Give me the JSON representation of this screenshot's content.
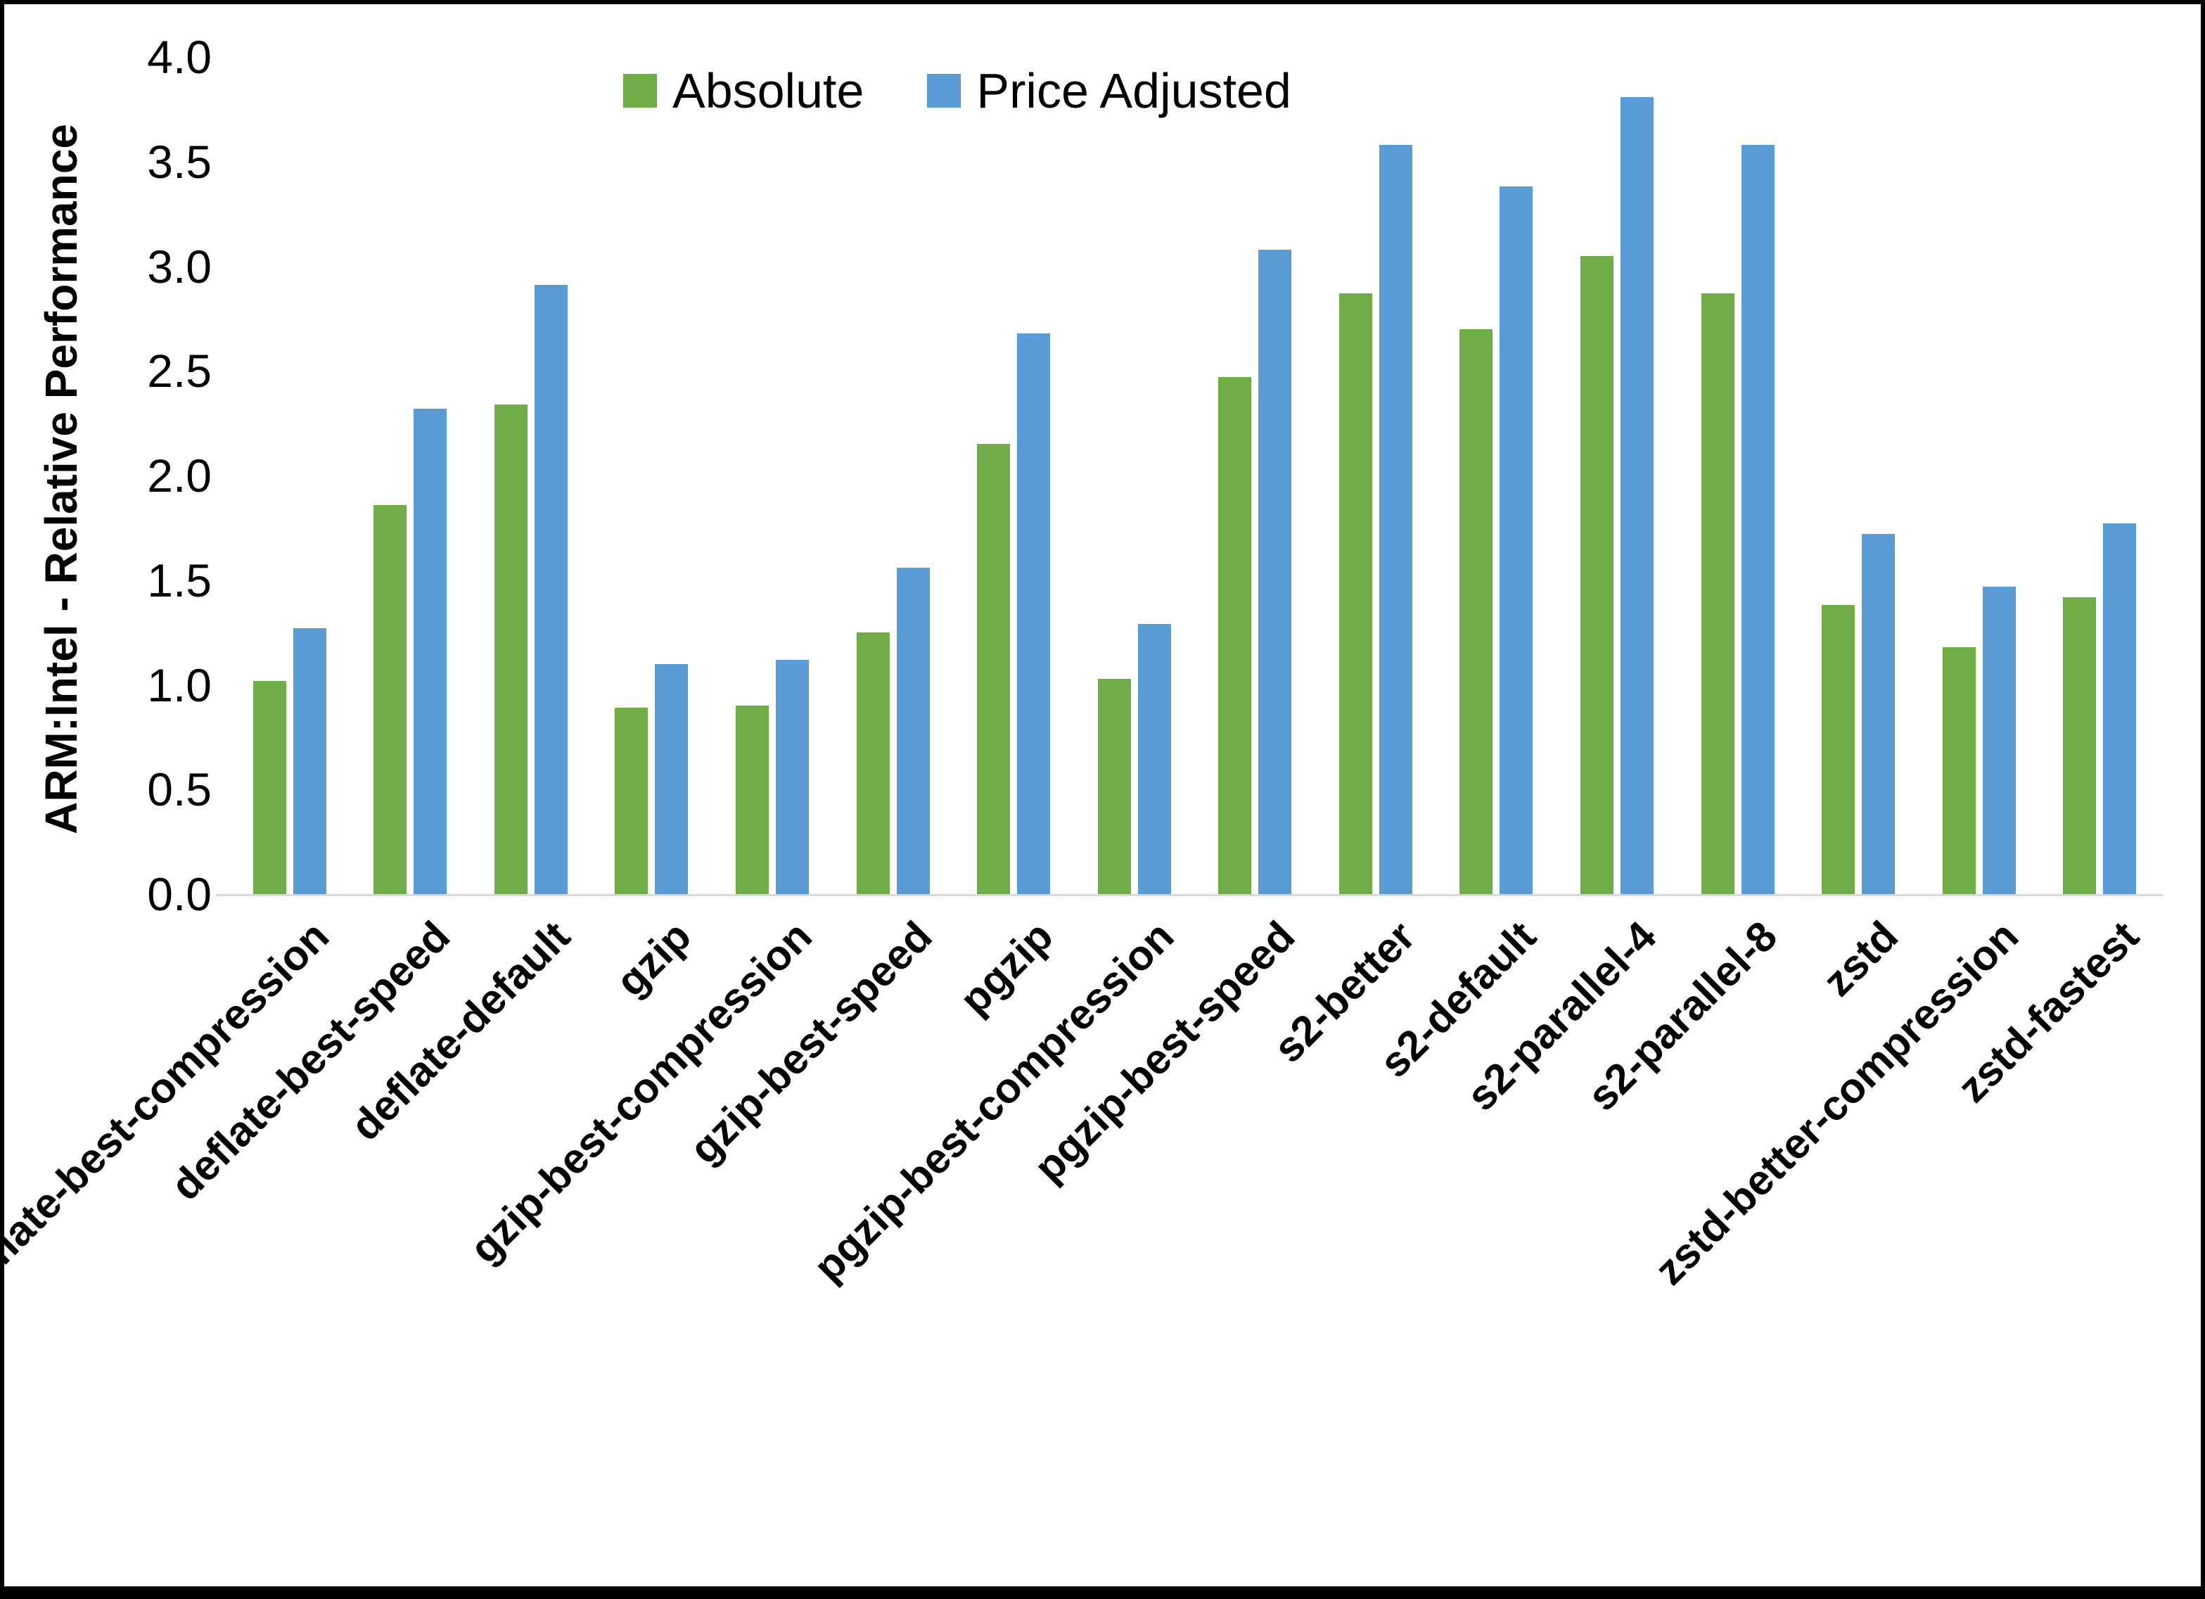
{
  "chart_data": {
    "type": "bar",
    "title": "",
    "xlabel": "",
    "ylabel": "ARM:Intel - Relative Performance",
    "ylim": [
      0,
      4.0
    ],
    "ytick_step": 0.5,
    "grid": false,
    "legend_position": "top",
    "categories": [
      "deflate-best-compression",
      "deflate-best-speed",
      "deflate-default",
      "gzip",
      "gzip-best-compression",
      "gzip-best-speed",
      "pgzip",
      "pgzip-best-compression",
      "pgzip-best-speed",
      "s2-better",
      "s2-default",
      "s2-parallel-4",
      "s2-parallel-8",
      "zstd",
      "zstd-better-compression",
      "zstd-fastest"
    ],
    "series": [
      {
        "name": "Absolute",
        "color": "#70AD47",
        "values": [
          1.02,
          1.86,
          2.34,
          0.89,
          0.9,
          1.25,
          2.15,
          1.03,
          2.47,
          2.87,
          2.7,
          3.05,
          2.87,
          1.38,
          1.18,
          1.42
        ]
      },
      {
        "name": "Price Adjusted",
        "color": "#5B9BD5",
        "values": [
          1.27,
          2.32,
          2.91,
          1.1,
          1.12,
          1.56,
          2.68,
          1.29,
          3.08,
          3.58,
          3.38,
          3.81,
          3.58,
          1.72,
          1.47,
          1.77
        ]
      }
    ]
  }
}
